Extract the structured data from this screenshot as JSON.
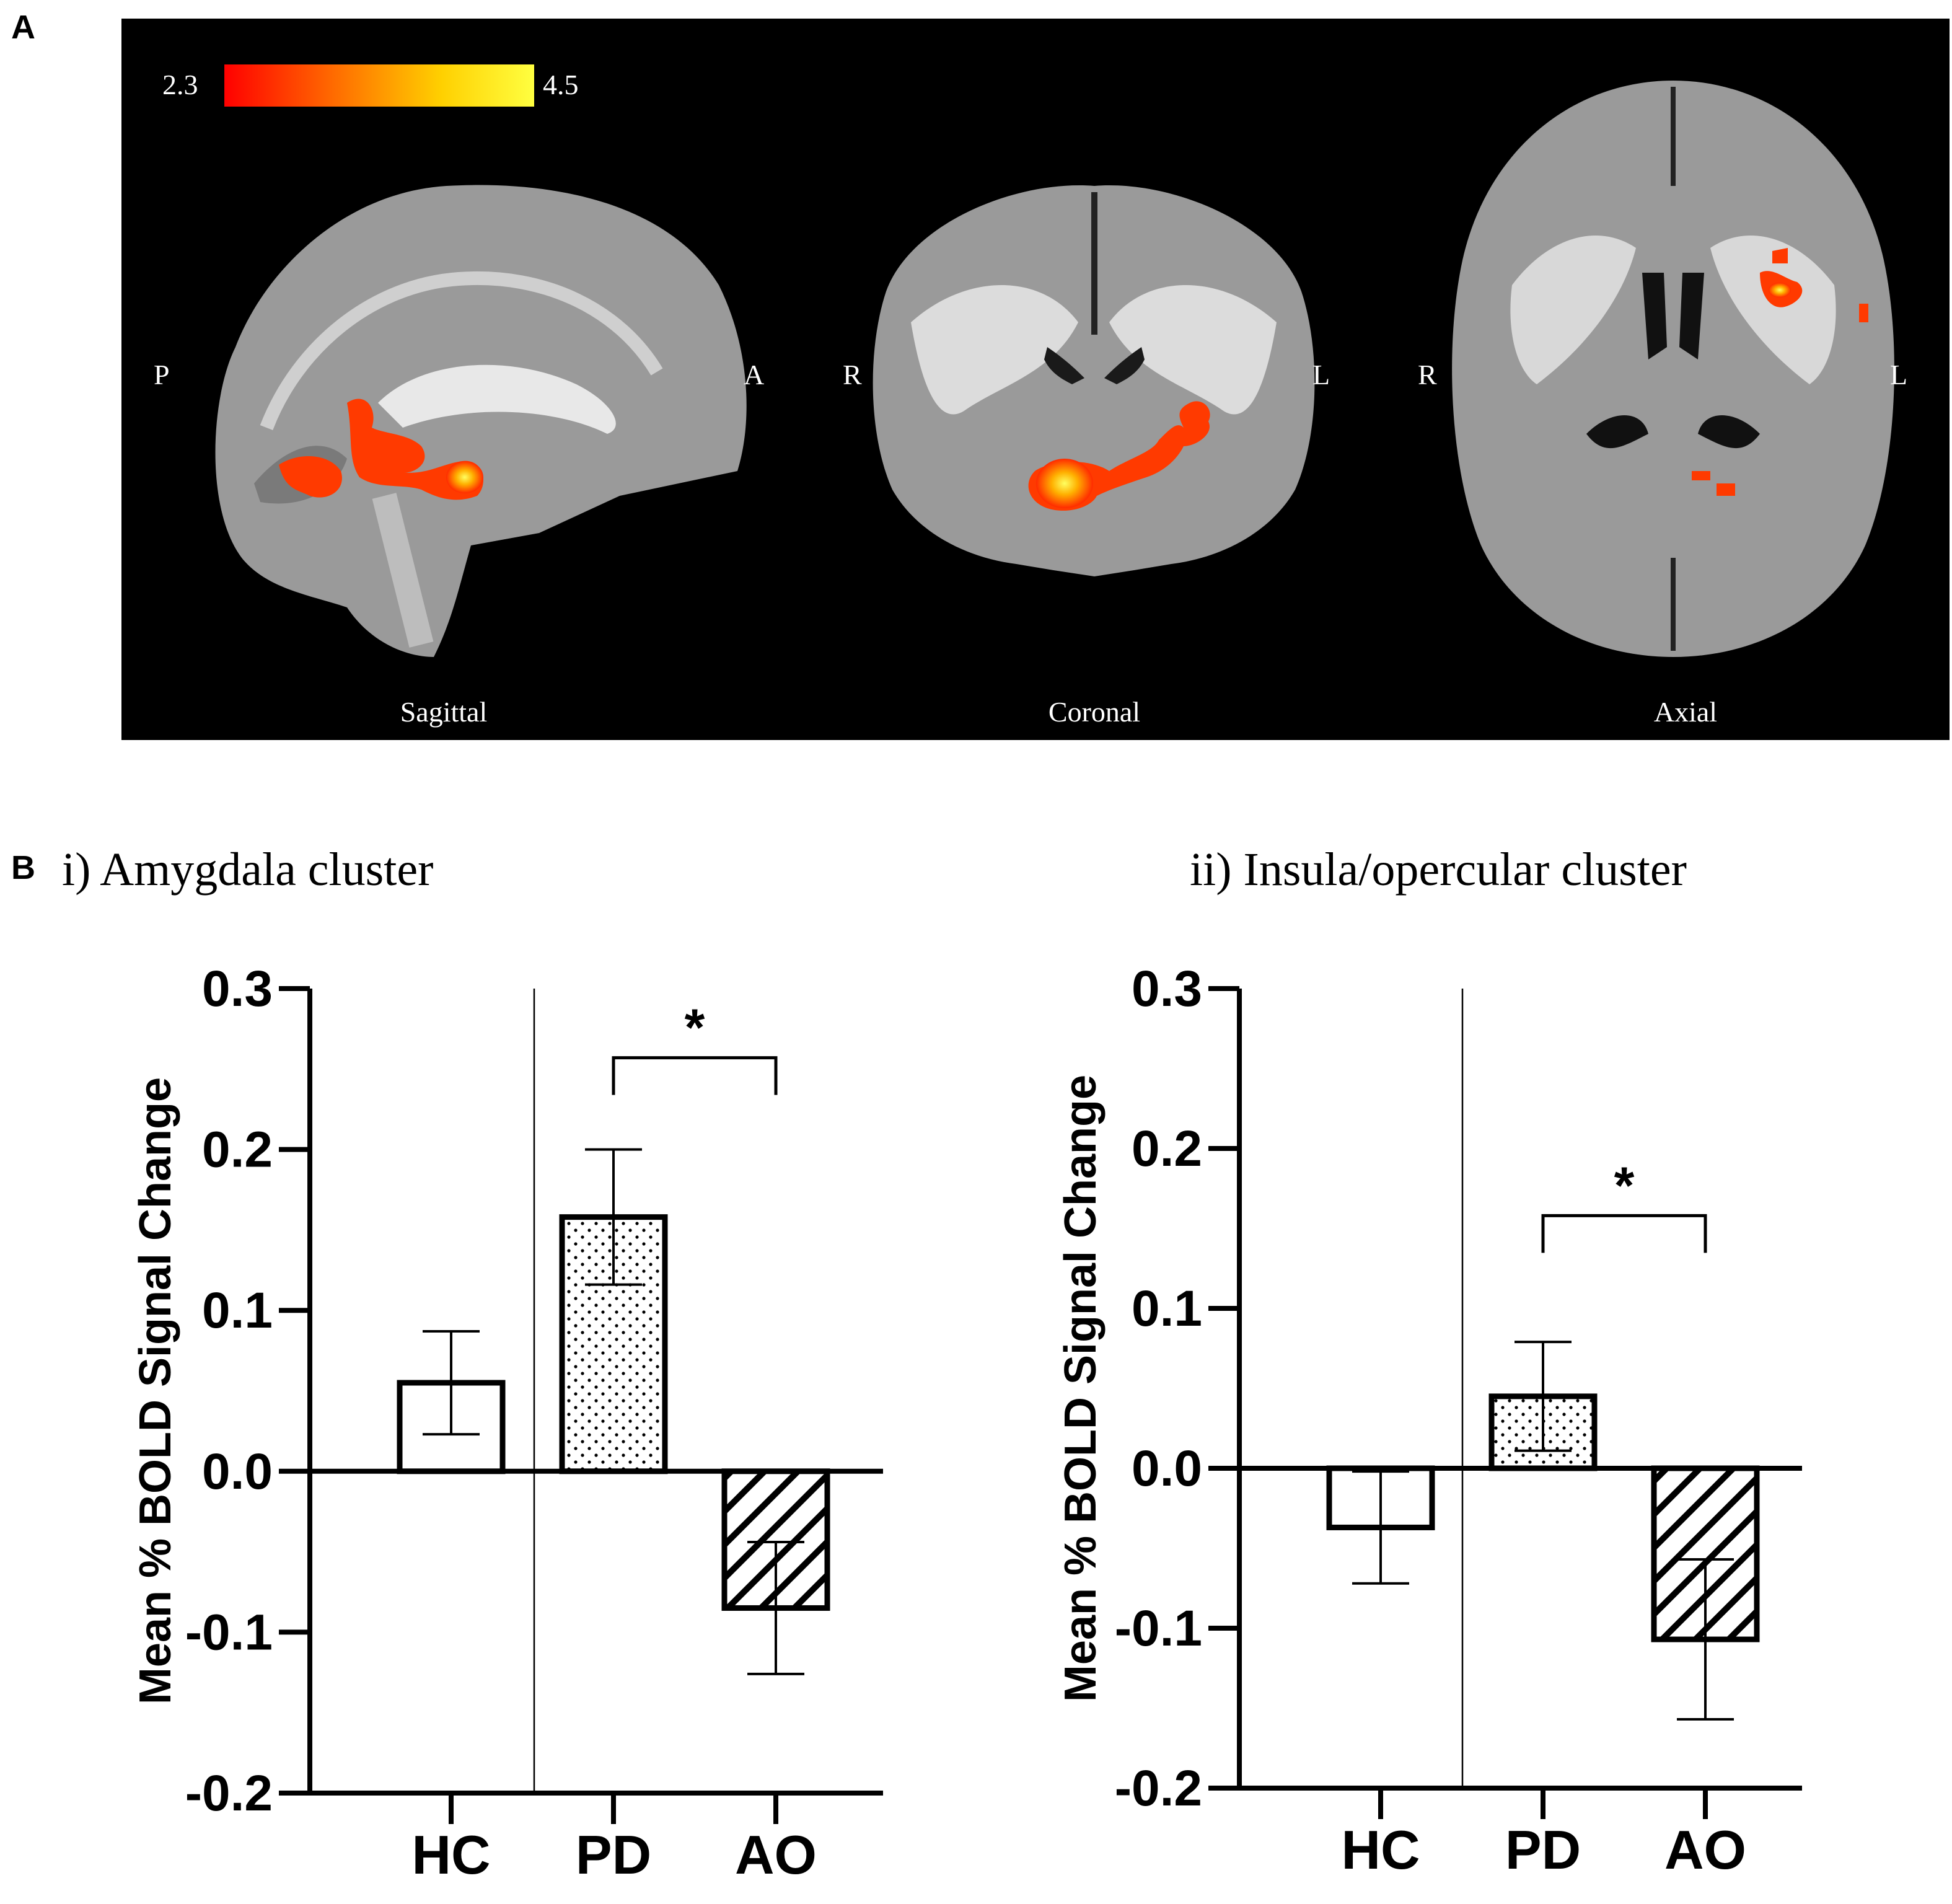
{
  "panel_a": {
    "label": "A",
    "colorbar": {
      "min_label": "2.3",
      "max_label": "4.5",
      "colors": [
        "#ff0000",
        "#ff6a00",
        "#ffd000",
        "#ffff40"
      ]
    },
    "views": [
      {
        "name": "Sagittal",
        "left_label": "P",
        "right_label": "A"
      },
      {
        "name": "Coronal",
        "left_label": "R",
        "right_label": "L"
      },
      {
        "name": "Axial",
        "left_label": "R",
        "right_label": "L"
      }
    ]
  },
  "panel_b": {
    "label": "B"
  },
  "chart_data": [
    {
      "type": "bar",
      "title": "i) Amygdala cluster",
      "ylabel": "Mean % BOLD Signal Change",
      "xlabel": "",
      "ylim": [
        -0.2,
        0.3
      ],
      "yticks": [
        "0.3",
        "0.2",
        "0.1",
        "0.0",
        "-0.1",
        "-0.2"
      ],
      "categories": [
        "HC",
        "PD",
        "AO"
      ],
      "values": [
        0.055,
        0.158,
        -0.085
      ],
      "errors": [
        0.032,
        0.042,
        0.041
      ],
      "fills": [
        "none",
        "dots",
        "hatch"
      ],
      "significance": {
        "from": "PD",
        "to": "AO",
        "label": "*",
        "y": 0.257
      }
    },
    {
      "type": "bar",
      "title": "ii) Insula/opercular cluster",
      "ylabel": "Mean % BOLD Signal Change",
      "xlabel": "",
      "ylim": [
        -0.2,
        0.3
      ],
      "yticks": [
        "0.3",
        "0.2",
        "0.1",
        "0.0",
        "-0.1",
        "-0.2"
      ],
      "categories": [
        "HC",
        "PD",
        "AO"
      ],
      "values": [
        -0.037,
        0.045,
        -0.107
      ],
      "errors": [
        0.035,
        0.034,
        0.05
      ],
      "fills": [
        "none",
        "dots",
        "hatch"
      ],
      "significance": {
        "from": "PD",
        "to": "AO",
        "label": "*",
        "y": 0.158
      }
    }
  ]
}
